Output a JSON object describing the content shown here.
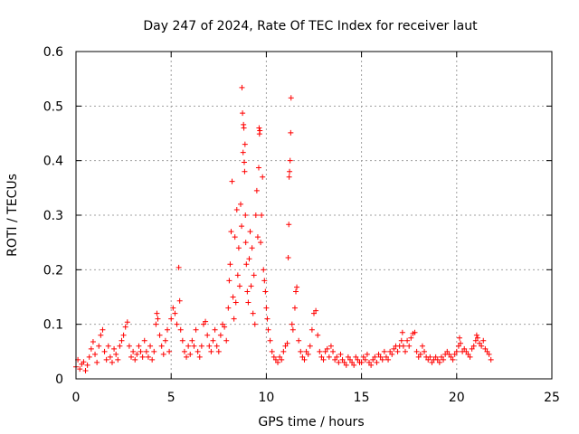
{
  "chart_data": {
    "type": "scatter",
    "title": "Day 247 of 2024, Rate Of TEC Index for receiver laut",
    "xlabel": "GPS time / hours",
    "ylabel": "ROTI / TECUs",
    "xlim": [
      0,
      25
    ],
    "ylim": [
      0,
      0.6
    ],
    "x_ticks": [
      0,
      5,
      10,
      15,
      20,
      25
    ],
    "x_tick_labels": [
      "0",
      "5",
      "10",
      "15",
      "20",
      "25"
    ],
    "y_ticks": [
      0,
      0.1,
      0.2,
      0.3,
      0.4,
      0.5,
      0.6
    ],
    "y_tick_labels": [
      "0",
      "0.1",
      "0.2",
      "0.3",
      "0.4",
      "0.5",
      "0.6"
    ],
    "grid": true,
    "marker": "+",
    "color": "#ff0000",
    "points": [
      [
        0.0,
        0.022
      ],
      [
        0.1,
        0.035
      ],
      [
        0.2,
        0.018
      ],
      [
        0.3,
        0.027
      ],
      [
        0.4,
        0.031
      ],
      [
        0.5,
        0.015
      ],
      [
        0.6,
        0.025
      ],
      [
        0.7,
        0.04
      ],
      [
        0.8,
        0.055
      ],
      [
        0.9,
        0.068
      ],
      [
        1.0,
        0.045
      ],
      [
        1.1,
        0.03
      ],
      [
        1.2,
        0.06
      ],
      [
        1.3,
        0.08
      ],
      [
        1.4,
        0.09
      ],
      [
        1.5,
        0.05
      ],
      [
        1.6,
        0.035
      ],
      [
        1.7,
        0.06
      ],
      [
        1.8,
        0.04
      ],
      [
        1.9,
        0.03
      ],
      [
        2.0,
        0.055
      ],
      [
        2.1,
        0.045
      ],
      [
        2.2,
        0.035
      ],
      [
        2.3,
        0.06
      ],
      [
        2.4,
        0.07
      ],
      [
        2.5,
        0.08
      ],
      [
        2.6,
        0.095
      ],
      [
        2.7,
        0.104
      ],
      [
        2.8,
        0.06
      ],
      [
        2.9,
        0.04
      ],
      [
        3.0,
        0.05
      ],
      [
        3.1,
        0.035
      ],
      [
        3.2,
        0.045
      ],
      [
        3.3,
        0.06
      ],
      [
        3.4,
        0.05
      ],
      [
        3.5,
        0.04
      ],
      [
        3.6,
        0.07
      ],
      [
        3.7,
        0.05
      ],
      [
        3.8,
        0.04
      ],
      [
        3.9,
        0.06
      ],
      [
        4.0,
        0.035
      ],
      [
        4.1,
        0.05
      ],
      [
        4.2,
        0.1
      ],
      [
        4.25,
        0.12
      ],
      [
        4.3,
        0.11
      ],
      [
        4.4,
        0.08
      ],
      [
        4.5,
        0.06
      ],
      [
        4.6,
        0.045
      ],
      [
        4.7,
        0.07
      ],
      [
        4.8,
        0.09
      ],
      [
        4.9,
        0.05
      ],
      [
        5.0,
        0.11
      ],
      [
        5.1,
        0.13
      ],
      [
        5.2,
        0.12
      ],
      [
        5.3,
        0.1
      ],
      [
        5.4,
        0.204
      ],
      [
        5.45,
        0.143
      ],
      [
        5.5,
        0.09
      ],
      [
        5.6,
        0.07
      ],
      [
        5.7,
        0.05
      ],
      [
        5.8,
        0.04
      ],
      [
        5.9,
        0.06
      ],
      [
        6.0,
        0.045
      ],
      [
        6.1,
        0.07
      ],
      [
        6.2,
        0.06
      ],
      [
        6.3,
        0.09
      ],
      [
        6.4,
        0.05
      ],
      [
        6.5,
        0.04
      ],
      [
        6.6,
        0.06
      ],
      [
        6.7,
        0.1
      ],
      [
        6.8,
        0.105
      ],
      [
        6.9,
        0.08
      ],
      [
        7.0,
        0.06
      ],
      [
        7.1,
        0.05
      ],
      [
        7.2,
        0.07
      ],
      [
        7.3,
        0.09
      ],
      [
        7.4,
        0.06
      ],
      [
        7.5,
        0.05
      ],
      [
        7.6,
        0.08
      ],
      [
        7.7,
        0.1
      ],
      [
        7.8,
        0.095
      ],
      [
        7.9,
        0.07
      ],
      [
        8.0,
        0.13
      ],
      [
        8.05,
        0.18
      ],
      [
        8.1,
        0.21
      ],
      [
        8.15,
        0.27
      ],
      [
        8.2,
        0.362
      ],
      [
        8.25,
        0.15
      ],
      [
        8.3,
        0.11
      ],
      [
        8.35,
        0.26
      ],
      [
        8.4,
        0.14
      ],
      [
        8.45,
        0.31
      ],
      [
        8.5,
        0.19
      ],
      [
        8.55,
        0.24
      ],
      [
        8.6,
        0.17
      ],
      [
        8.65,
        0.32
      ],
      [
        8.7,
        0.28
      ],
      [
        8.72,
        0.534
      ],
      [
        8.75,
        0.487
      ],
      [
        8.78,
        0.415
      ],
      [
        8.8,
        0.466
      ],
      [
        8.82,
        0.46
      ],
      [
        8.84,
        0.397
      ],
      [
        8.86,
        0.38
      ],
      [
        8.88,
        0.43
      ],
      [
        8.9,
        0.3
      ],
      [
        8.92,
        0.25
      ],
      [
        8.95,
        0.21
      ],
      [
        9.0,
        0.16
      ],
      [
        9.05,
        0.14
      ],
      [
        9.1,
        0.22
      ],
      [
        9.15,
        0.27
      ],
      [
        9.2,
        0.17
      ],
      [
        9.25,
        0.24
      ],
      [
        9.3,
        0.12
      ],
      [
        9.35,
        0.19
      ],
      [
        9.4,
        0.1
      ],
      [
        9.45,
        0.3
      ],
      [
        9.5,
        0.345
      ],
      [
        9.55,
        0.26
      ],
      [
        9.6,
        0.387
      ],
      [
        9.62,
        0.46
      ],
      [
        9.64,
        0.449
      ],
      [
        9.66,
        0.455
      ],
      [
        9.7,
        0.25
      ],
      [
        9.75,
        0.3
      ],
      [
        9.8,
        0.37
      ],
      [
        9.85,
        0.2
      ],
      [
        9.9,
        0.18
      ],
      [
        9.95,
        0.16
      ],
      [
        10.0,
        0.13
      ],
      [
        10.05,
        0.11
      ],
      [
        10.1,
        0.09
      ],
      [
        10.2,
        0.07
      ],
      [
        10.3,
        0.05
      ],
      [
        10.4,
        0.04
      ],
      [
        10.5,
        0.035
      ],
      [
        10.6,
        0.03
      ],
      [
        10.7,
        0.04
      ],
      [
        10.8,
        0.035
      ],
      [
        10.9,
        0.05
      ],
      [
        11.0,
        0.06
      ],
      [
        11.1,
        0.065
      ],
      [
        11.15,
        0.222
      ],
      [
        11.18,
        0.283
      ],
      [
        11.2,
        0.37
      ],
      [
        11.22,
        0.38
      ],
      [
        11.25,
        0.4
      ],
      [
        11.28,
        0.451
      ],
      [
        11.3,
        0.515
      ],
      [
        11.35,
        0.1
      ],
      [
        11.4,
        0.09
      ],
      [
        11.5,
        0.13
      ],
      [
        11.55,
        0.16
      ],
      [
        11.6,
        0.168
      ],
      [
        11.7,
        0.07
      ],
      [
        11.8,
        0.05
      ],
      [
        11.9,
        0.04
      ],
      [
        12.0,
        0.035
      ],
      [
        12.1,
        0.05
      ],
      [
        12.2,
        0.045
      ],
      [
        12.3,
        0.06
      ],
      [
        12.4,
        0.09
      ],
      [
        12.5,
        0.12
      ],
      [
        12.6,
        0.125
      ],
      [
        12.7,
        0.08
      ],
      [
        12.8,
        0.05
      ],
      [
        12.9,
        0.04
      ],
      [
        13.0,
        0.035
      ],
      [
        13.1,
        0.05
      ],
      [
        13.2,
        0.055
      ],
      [
        13.3,
        0.04
      ],
      [
        13.4,
        0.06
      ],
      [
        13.5,
        0.05
      ],
      [
        13.6,
        0.035
      ],
      [
        13.7,
        0.04
      ],
      [
        13.8,
        0.03
      ],
      [
        13.9,
        0.045
      ],
      [
        14.0,
        0.035
      ],
      [
        14.1,
        0.03
      ],
      [
        14.2,
        0.025
      ],
      [
        14.3,
        0.04
      ],
      [
        14.4,
        0.035
      ],
      [
        14.5,
        0.03
      ],
      [
        14.6,
        0.025
      ],
      [
        14.7,
        0.04
      ],
      [
        14.8,
        0.035
      ],
      [
        14.9,
        0.03
      ],
      [
        15.0,
        0.03
      ],
      [
        15.1,
        0.04
      ],
      [
        15.2,
        0.035
      ],
      [
        15.3,
        0.045
      ],
      [
        15.4,
        0.03
      ],
      [
        15.5,
        0.025
      ],
      [
        15.6,
        0.035
      ],
      [
        15.7,
        0.04
      ],
      [
        15.8,
        0.03
      ],
      [
        15.9,
        0.045
      ],
      [
        16.0,
        0.04
      ],
      [
        16.1,
        0.035
      ],
      [
        16.2,
        0.05
      ],
      [
        16.3,
        0.04
      ],
      [
        16.4,
        0.035
      ],
      [
        16.5,
        0.05
      ],
      [
        16.6,
        0.045
      ],
      [
        16.7,
        0.055
      ],
      [
        16.8,
        0.06
      ],
      [
        16.9,
        0.05
      ],
      [
        17.0,
        0.06
      ],
      [
        17.1,
        0.07
      ],
      [
        17.15,
        0.085
      ],
      [
        17.2,
        0.06
      ],
      [
        17.3,
        0.05
      ],
      [
        17.4,
        0.07
      ],
      [
        17.5,
        0.06
      ],
      [
        17.6,
        0.075
      ],
      [
        17.7,
        0.083
      ],
      [
        17.8,
        0.085
      ],
      [
        17.9,
        0.05
      ],
      [
        18.0,
        0.04
      ],
      [
        18.1,
        0.045
      ],
      [
        18.2,
        0.06
      ],
      [
        18.3,
        0.05
      ],
      [
        18.4,
        0.04
      ],
      [
        18.5,
        0.035
      ],
      [
        18.6,
        0.04
      ],
      [
        18.7,
        0.03
      ],
      [
        18.8,
        0.035
      ],
      [
        18.9,
        0.04
      ],
      [
        19.0,
        0.035
      ],
      [
        19.1,
        0.03
      ],
      [
        19.2,
        0.04
      ],
      [
        19.3,
        0.035
      ],
      [
        19.4,
        0.045
      ],
      [
        19.5,
        0.05
      ],
      [
        19.6,
        0.045
      ],
      [
        19.7,
        0.04
      ],
      [
        19.8,
        0.035
      ],
      [
        19.9,
        0.045
      ],
      [
        20.0,
        0.05
      ],
      [
        20.1,
        0.06
      ],
      [
        20.15,
        0.075
      ],
      [
        20.2,
        0.065
      ],
      [
        20.3,
        0.05
      ],
      [
        20.4,
        0.055
      ],
      [
        20.5,
        0.05
      ],
      [
        20.6,
        0.045
      ],
      [
        20.7,
        0.04
      ],
      [
        20.8,
        0.055
      ],
      [
        20.9,
        0.06
      ],
      [
        21.0,
        0.07
      ],
      [
        21.05,
        0.08
      ],
      [
        21.1,
        0.075
      ],
      [
        21.2,
        0.065
      ],
      [
        21.3,
        0.06
      ],
      [
        21.4,
        0.07
      ],
      [
        21.5,
        0.055
      ],
      [
        21.6,
        0.05
      ],
      [
        21.7,
        0.045
      ],
      [
        21.8,
        0.035
      ]
    ]
  }
}
